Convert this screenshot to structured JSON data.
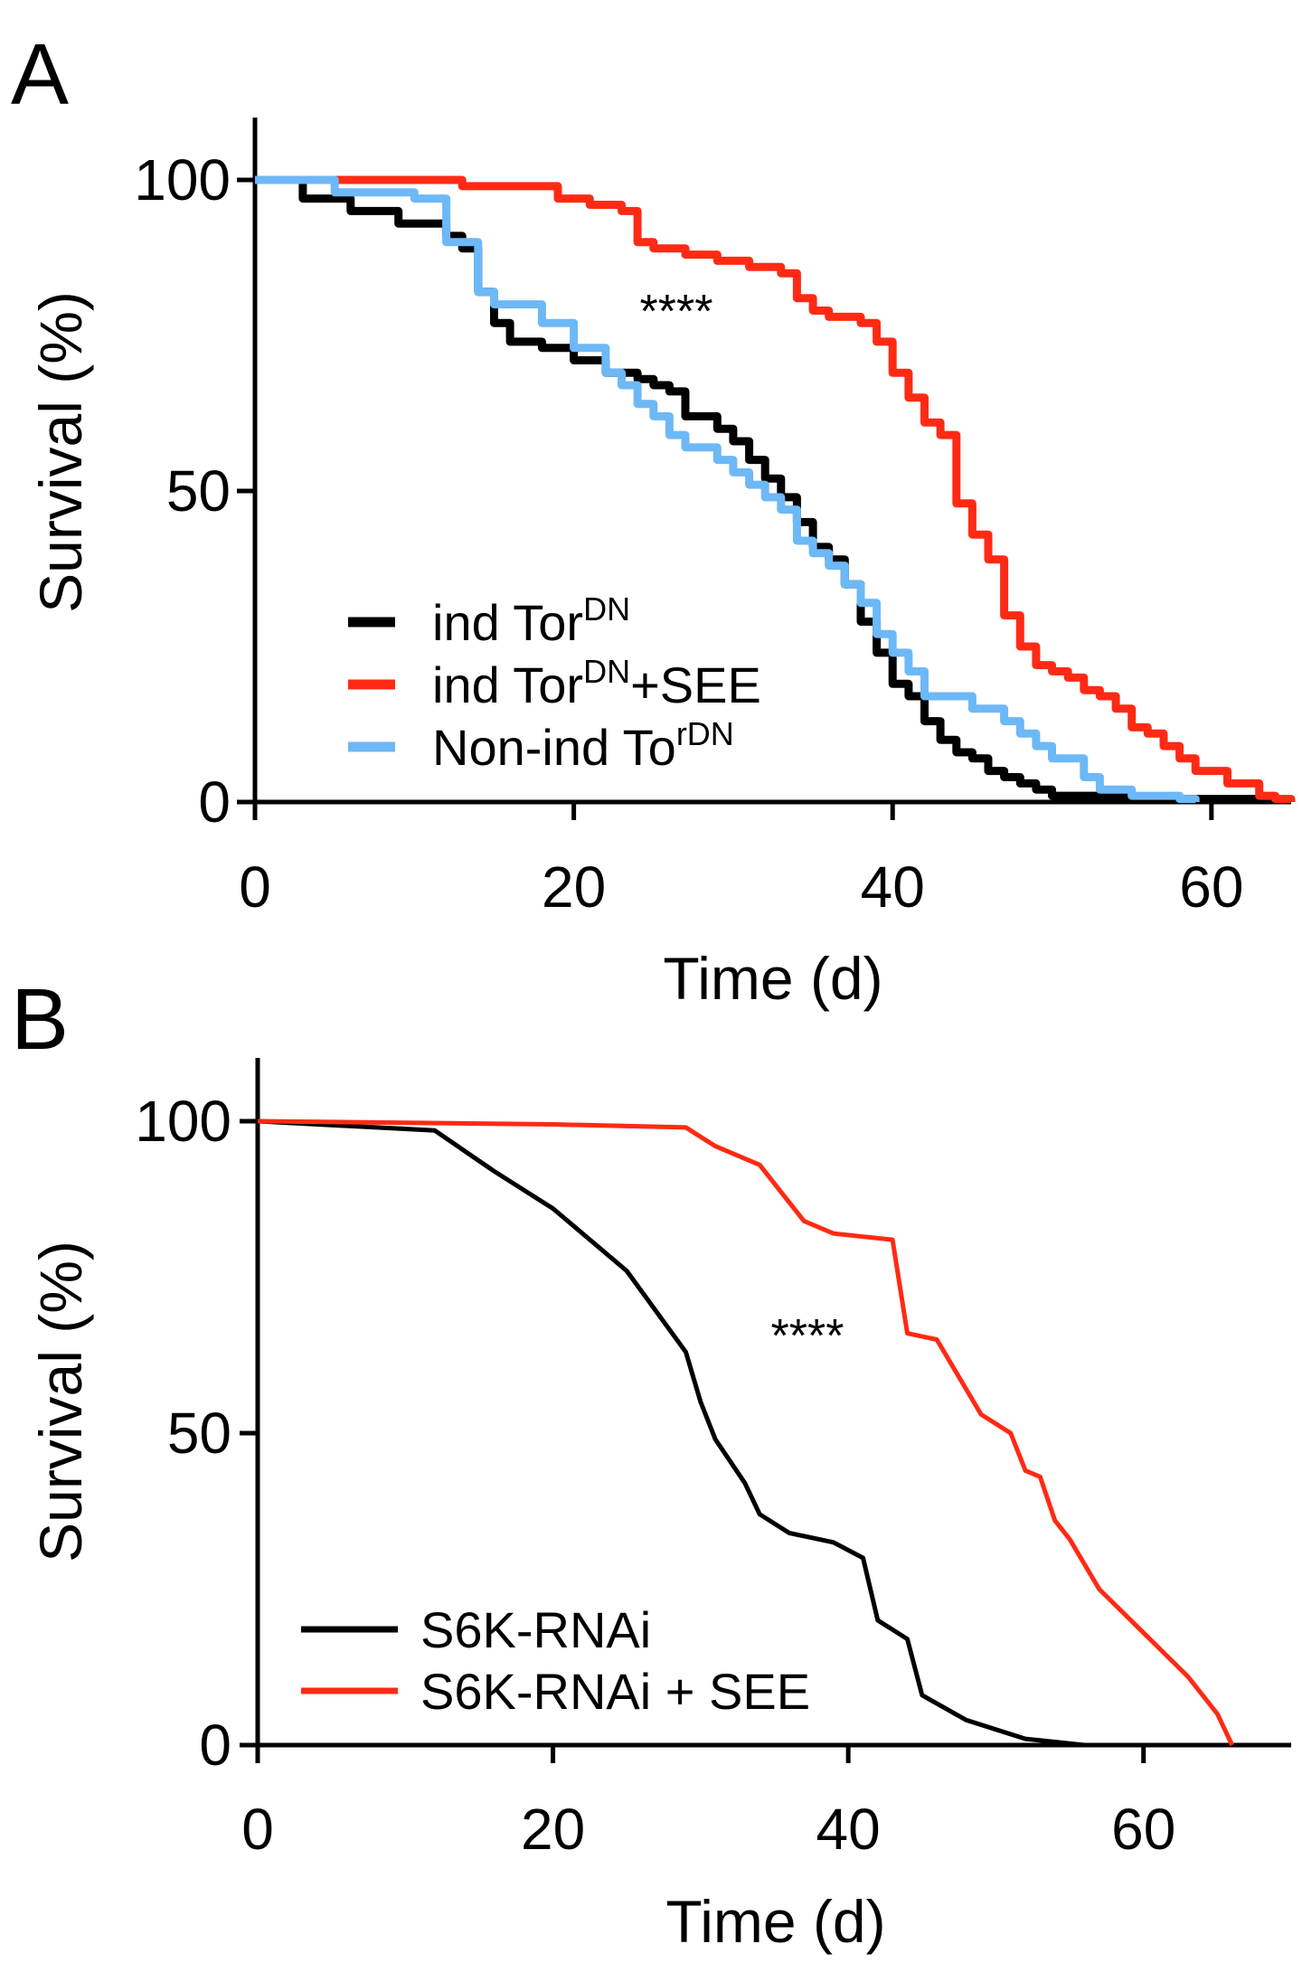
{
  "colors": {
    "black": "#000000",
    "red": "#ff2a14",
    "blue": "#6db8f7"
  },
  "chart_data": [
    {
      "panel": "A",
      "type": "line",
      "step": true,
      "xlabel": "Time (d)",
      "ylabel": "Survival (%)",
      "xlim": [
        0,
        65
      ],
      "ylim": [
        0,
        110
      ],
      "xticks": [
        "0",
        "20",
        "40",
        "60"
      ],
      "yticks": [
        "0",
        "50",
        "100"
      ],
      "annotation": "****",
      "legend_position": "lower-left",
      "series": [
        {
          "legend_base": "ind Tor",
          "legend_sup": "DN",
          "legend_tail": "",
          "color": "#000000",
          "x": [
            0,
            3,
            6,
            9,
            12,
            13,
            14,
            15,
            16,
            18,
            20,
            22,
            24,
            25,
            26,
            27,
            29,
            30,
            31,
            32,
            33,
            34,
            35,
            36,
            37,
            38,
            39,
            40,
            41,
            42,
            43,
            44,
            45,
            46,
            47,
            48,
            49,
            50,
            52,
            55,
            58,
            63
          ],
          "y": [
            100,
            97,
            95,
            93,
            91,
            89,
            82,
            77,
            74,
            73,
            71,
            69,
            68,
            67,
            66,
            62,
            60,
            58,
            55,
            52,
            49,
            45,
            41,
            39,
            35,
            29,
            24,
            19,
            17,
            13,
            10,
            8,
            7,
            5,
            4,
            3,
            2,
            1,
            1,
            0.5,
            0.5,
            0
          ]
        },
        {
          "legend_base": "ind Tor",
          "legend_sup": "DN",
          "legend_tail": "+SEE",
          "color": "#ff2a14",
          "x": [
            0,
            5,
            10,
            11,
            13,
            15,
            18,
            19,
            21,
            23,
            24,
            25,
            27,
            29,
            31,
            33,
            34,
            35,
            36,
            38,
            39,
            40,
            41,
            42,
            43,
            44,
            45,
            46,
            47,
            48,
            49,
            50,
            51,
            52,
            53,
            54,
            55,
            56,
            57,
            58,
            59,
            61,
            63,
            64,
            65
          ],
          "y": [
            100,
            100,
            100,
            100,
            99,
            99,
            99,
            97,
            96,
            95,
            90,
            89,
            88,
            87,
            86,
            85,
            81,
            79,
            78,
            77,
            74,
            69,
            65,
            61,
            59,
            48,
            43,
            39,
            30,
            25,
            22,
            21,
            20,
            18,
            17,
            15,
            12,
            11,
            9,
            7,
            5,
            3,
            1,
            0.5,
            0
          ]
        },
        {
          "legend_base": "Non-ind To",
          "legend_sup": "rDN",
          "legend_tail": "",
          "color": "#6db8f7",
          "x": [
            0,
            5,
            10,
            12,
            14,
            15,
            18,
            20,
            22,
            23,
            24,
            25,
            26,
            27,
            29,
            30,
            31,
            32,
            33,
            34,
            35,
            36,
            37,
            38,
            39,
            40,
            41,
            42,
            45,
            47,
            48,
            49,
            50,
            52,
            53,
            55,
            57,
            58,
            59
          ],
          "y": [
            100,
            98,
            97,
            90,
            82,
            80,
            77,
            73,
            69,
            67,
            64,
            62,
            59,
            57,
            55,
            53,
            51,
            49,
            47,
            42,
            40,
            38,
            35,
            32,
            27,
            24,
            21,
            17,
            15,
            13,
            11,
            9,
            7,
            4,
            2,
            1,
            1,
            0.5,
            0
          ]
        }
      ]
    },
    {
      "panel": "B",
      "type": "line",
      "step": false,
      "xlabel": "Time (d)",
      "ylabel": "Survival (%)",
      "xlim": [
        0,
        70
      ],
      "ylim": [
        0,
        110
      ],
      "xticks": [
        "0",
        "20",
        "40",
        "60"
      ],
      "yticks": [
        "0",
        "50",
        "100"
      ],
      "annotation": "****",
      "legend_position": "lower-left",
      "series": [
        {
          "name": "S6K-RNAi",
          "color": "#000000",
          "x": [
            0,
            12,
            16,
            20,
            25,
            29,
            30,
            31,
            33,
            34,
            36,
            39,
            41,
            42,
            44,
            45,
            48,
            52,
            56
          ],
          "y": [
            100,
            98.5,
            92,
            86,
            76,
            63,
            55,
            49,
            42,
            37,
            34,
            32.5,
            30,
            20,
            17,
            8,
            4,
            1,
            0
          ]
        },
        {
          "name": "S6K-RNAi + SEE",
          "color": "#ff2a14",
          "x": [
            0,
            20,
            29,
            31,
            34,
            36,
            37,
            39,
            43,
            44,
            46,
            49,
            51,
            52,
            53,
            54,
            55,
            57,
            60,
            63,
            65,
            66
          ],
          "y": [
            100,
            99.5,
            99,
            96,
            93,
            87,
            84,
            82,
            81,
            66,
            65,
            53,
            50,
            44,
            43,
            36,
            33,
            25,
            18,
            11,
            5,
            0
          ]
        }
      ]
    }
  ]
}
